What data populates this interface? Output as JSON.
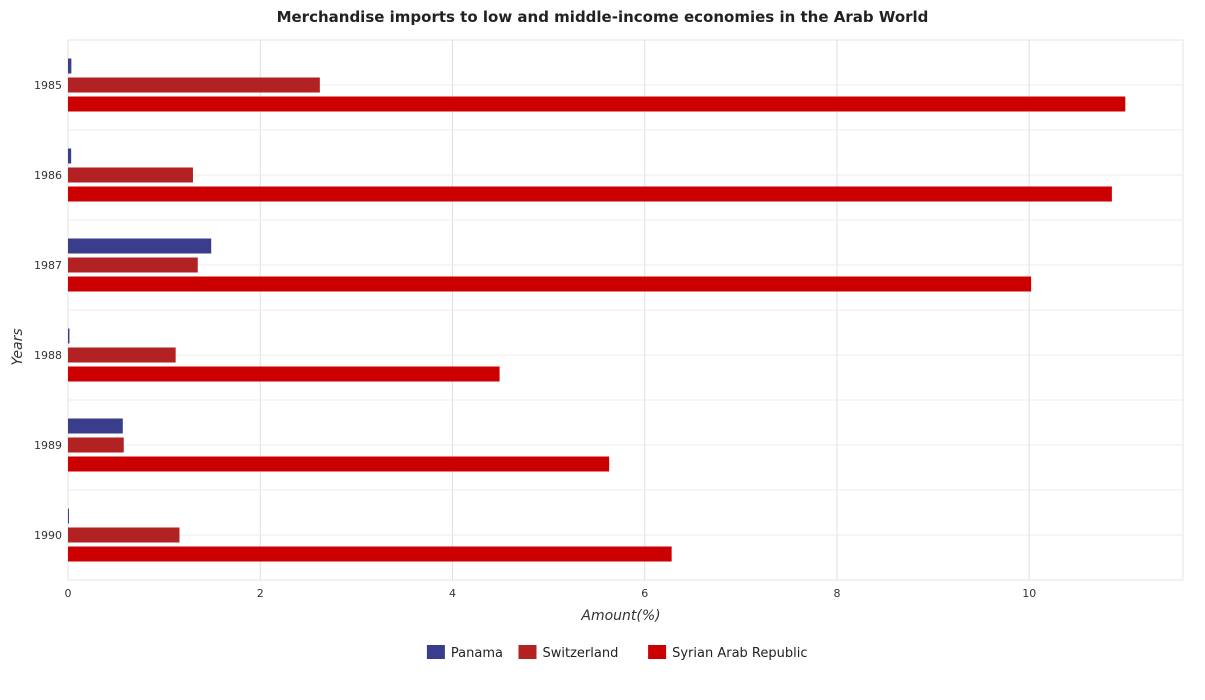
{
  "chart_data": {
    "type": "bar",
    "orientation": "horizontal",
    "title": "Merchandise imports to low and middle-income economies in the Arab World",
    "xlabel": "Amount(%)",
    "ylabel": "Years",
    "categories": [
      "1985",
      "1986",
      "1987",
      "1988",
      "1989",
      "1990"
    ],
    "series": [
      {
        "name": "Panama",
        "color": "#3a3d8c",
        "values": [
          0.035,
          0.033,
          1.49,
          0.015,
          0.57,
          0.01
        ]
      },
      {
        "name": "Switzerland",
        "color": "#b22222",
        "values": [
          2.62,
          1.3,
          1.35,
          1.12,
          0.58,
          1.16
        ]
      },
      {
        "name": "Syrian Arab Republic",
        "color": "#cc0000",
        "values": [
          11.0,
          10.86,
          10.02,
          4.49,
          5.63,
          6.28
        ]
      }
    ],
    "xlim": [
      0,
      11.6
    ],
    "xticks": [
      0,
      2,
      4,
      6,
      8,
      10
    ],
    "grid": true,
    "legend_position": "bottom"
  }
}
